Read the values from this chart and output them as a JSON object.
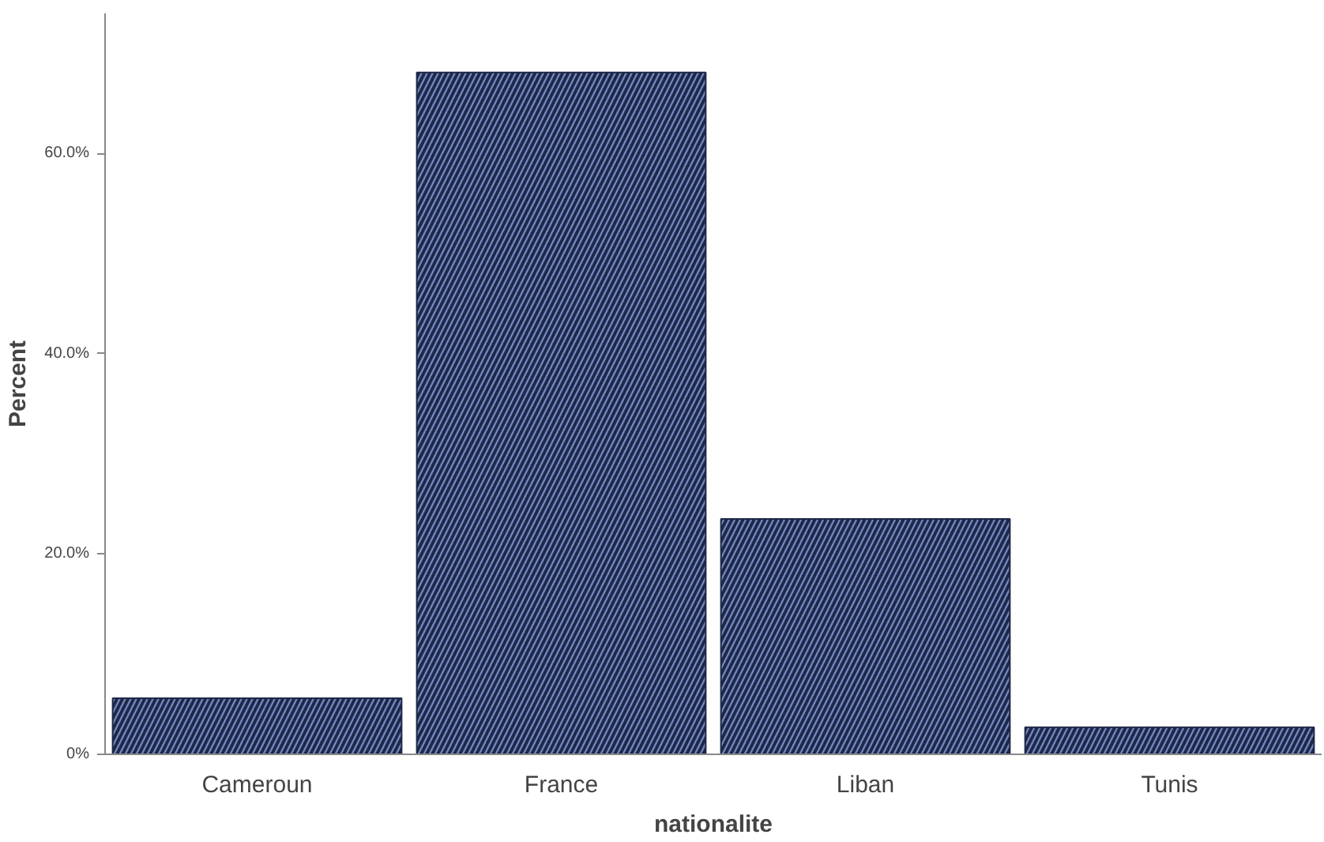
{
  "chart_data": {
    "type": "bar",
    "xlabel": "nationalite",
    "ylabel": "Percent",
    "categories": [
      "Cameroun",
      "France",
      "Liban",
      "Tunis"
    ],
    "values": [
      5.6,
      68.1,
      23.5,
      2.7
    ],
    "color": "#1f2747",
    "ylim": [
      0,
      74
    ],
    "yticks": [
      {
        "value": 0,
        "label": "0%"
      },
      {
        "value": 20,
        "label": "20.0%"
      },
      {
        "value": 40,
        "label": "40.0%"
      },
      {
        "value": 60,
        "label": "60.0%"
      }
    ],
    "grid": false
  }
}
